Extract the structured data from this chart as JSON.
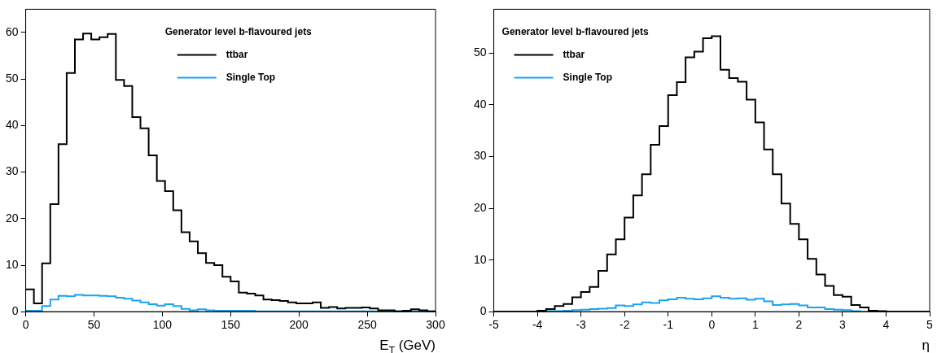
{
  "chart_data": [
    {
      "type": "histogram",
      "xlabel": "E$_{T}$ (GeV)",
      "legend_title": "Generator level b-flavoured jets",
      "legend": "top",
      "grid": false,
      "bins": [
        0,
        6,
        12,
        18,
        24,
        30,
        36,
        42,
        48,
        54,
        60,
        66,
        72,
        78,
        84,
        90,
        96,
        102,
        108,
        114,
        120,
        126,
        132,
        138,
        144,
        150,
        156,
        162,
        168,
        174,
        180,
        186,
        192,
        198,
        204,
        210,
        216,
        222,
        228,
        234,
        240,
        246,
        252,
        258,
        264,
        270,
        276,
        282,
        288,
        294,
        300
      ],
      "xlim": [
        0,
        300
      ],
      "xticks": [
        0,
        50,
        100,
        150,
        200,
        250,
        300
      ],
      "ylim": [
        0,
        65
      ],
      "yticks": [
        0,
        10,
        20,
        30,
        40,
        50,
        60
      ],
      "series": [
        {
          "name": "ttbar",
          "color": "#000000",
          "values": [
            4.8,
            1.8,
            10.4,
            23.1,
            36,
            51.3,
            58.5,
            59.8,
            58.5,
            59,
            59.7,
            49.8,
            48.5,
            41.8,
            39.4,
            33.6,
            28.1,
            25.9,
            21.8,
            17.1,
            15.1,
            12.6,
            10.5,
            10,
            7.5,
            6.5,
            4.1,
            3.9,
            3.5,
            2.6,
            2.5,
            2.3,
            2,
            1.8,
            1.8,
            2,
            0.8,
            1,
            0.7,
            0.8,
            0.8,
            0.9,
            0.7,
            0.3,
            0.3,
            0.1,
            0.2,
            0.5,
            0.3,
            0.1
          ]
        },
        {
          "name": "Single Top",
          "color": "#1aa3ee",
          "values": [
            0.2,
            0.2,
            1.2,
            2.6,
            3.4,
            3.3,
            3.6,
            3.5,
            3.5,
            3.4,
            3.3,
            3,
            2.8,
            2.4,
            2,
            1.6,
            1.3,
            1.6,
            1.2,
            0.6,
            0.3,
            0.5,
            0.3,
            0.2,
            0.2,
            0.2,
            0.2,
            0.2,
            0.1,
            0.1,
            0.1,
            0.1,
            0.1,
            0.1,
            0.1,
            0.1,
            0.1,
            0.1,
            0.1,
            0.1,
            0.1,
            0.1,
            0.1,
            0.1,
            0.1,
            0.1,
            0.1,
            0.1,
            0.1,
            0.1
          ]
        }
      ]
    },
    {
      "type": "histogram",
      "xlabel": "η",
      "legend_title": "Generator level b-flavoured jets",
      "legend": "top left",
      "grid": false,
      "bins": [
        -5,
        -4.8,
        -4.6,
        -4.4,
        -4.2,
        -4,
        -3.8,
        -3.6,
        -3.4,
        -3.2,
        -3,
        -2.8,
        -2.6,
        -2.4,
        -2.2,
        -2,
        -1.8,
        -1.6,
        -1.4,
        -1.2,
        -1,
        -0.8,
        -0.6,
        -0.4,
        -0.2,
        0,
        0.2,
        0.4,
        0.6,
        0.8,
        1,
        1.2,
        1.4,
        1.6,
        1.8,
        2,
        2.2,
        2.4,
        2.6,
        2.8,
        3,
        3.2,
        3.4,
        3.6,
        3.8,
        4,
        4.2,
        4.4,
        4.6,
        4.8,
        5
      ],
      "xlim": [
        -5,
        5
      ],
      "xticks": [
        -5,
        -4,
        -3,
        -2,
        -1,
        0,
        1,
        2,
        3,
        4,
        5
      ],
      "ylim": [
        0,
        58.5
      ],
      "yticks": [
        0,
        10,
        20,
        30,
        40,
        50
      ],
      "series": [
        {
          "name": "ttbar",
          "color": "#000000",
          "values": [
            0,
            0,
            0,
            0,
            0,
            0.2,
            0.5,
            1.1,
            1.5,
            2.8,
            3.8,
            4.8,
            7.9,
            11.1,
            14,
            18.2,
            22.5,
            26.6,
            32.3,
            35.9,
            41.9,
            44.4,
            49.2,
            50.3,
            52.9,
            53.3,
            46.8,
            45.2,
            44.5,
            41,
            36.6,
            31.4,
            26.6,
            20.9,
            17,
            14,
            10.2,
            7.2,
            5,
            3.2,
            2.9,
            1.3,
            0.8,
            0.2,
            0.1,
            0,
            0,
            0,
            0,
            0
          ]
        },
        {
          "name": "Single Top",
          "color": "#1aa3ee",
          "values": [
            0,
            0,
            0,
            0,
            0,
            0,
            0.1,
            0.1,
            0.2,
            0.3,
            0.4,
            0.5,
            0.6,
            0.7,
            1.2,
            1.1,
            1.4,
            1.8,
            1.7,
            2.2,
            2.4,
            2.7,
            2.5,
            2.4,
            2.6,
            3,
            2.7,
            2.5,
            2.6,
            2.3,
            2.5,
            2,
            1.3,
            1.4,
            1.5,
            1.2,
            0.8,
            0.8,
            0.5,
            0.4,
            0.3,
            0.1,
            0,
            0,
            0,
            0,
            0,
            0,
            0,
            0
          ]
        }
      ]
    }
  ]
}
